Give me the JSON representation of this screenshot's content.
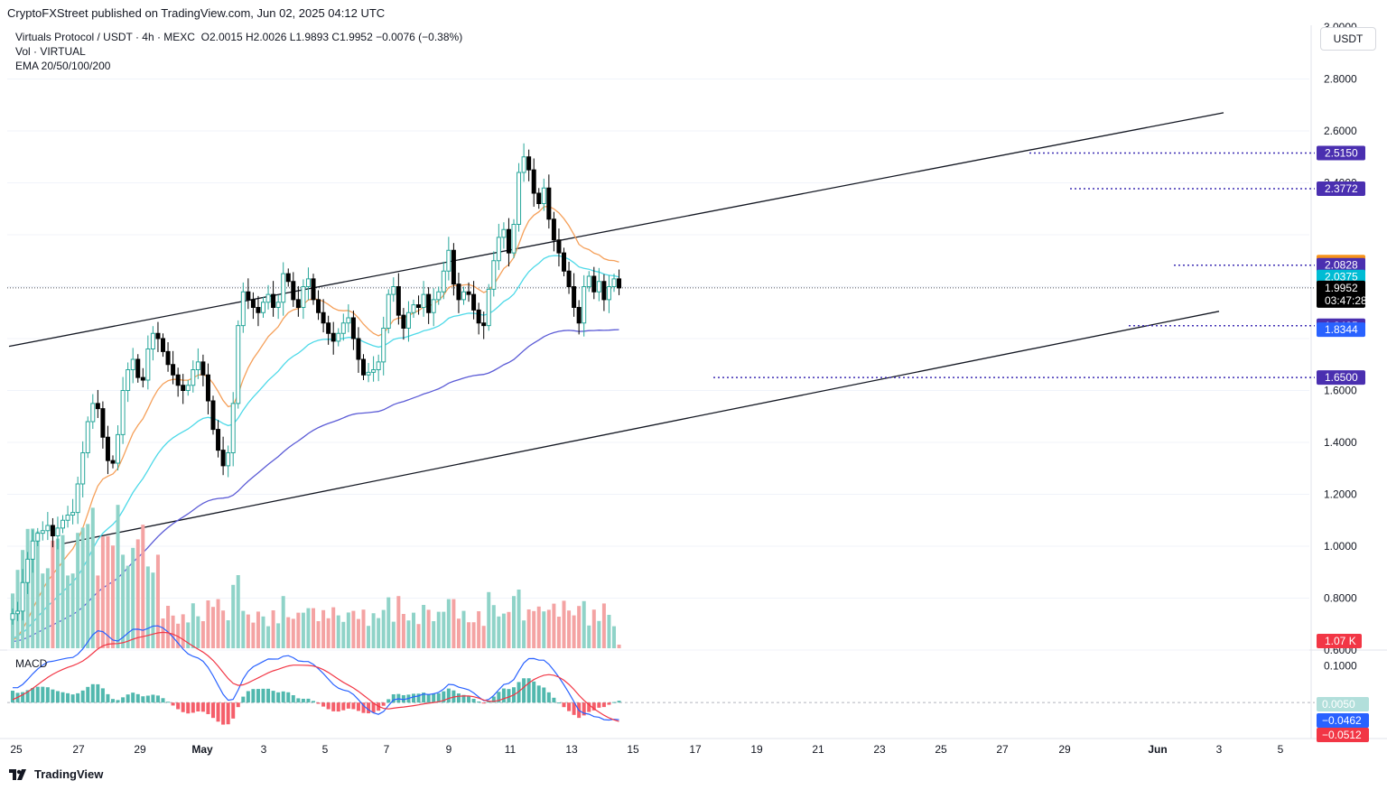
{
  "publisher": "CryptoFXStreet published on TradingView.com, Jun 02, 2025 04:12 UTC",
  "legend": {
    "symbol": "Virtuals Protocol / USDT · 4h · MEXC",
    "ohlc": "O2.0015  H2.0026  L1.9893  C1.9952  −0.0076 (−0.38%)",
    "volume": "Vol · VIRTUAL",
    "ema": "EMA 20/50/100/200"
  },
  "currency_button": "USDT",
  "macd_label": "MACD",
  "footer_brand": "TradingView",
  "colors": {
    "up": "#26a69a",
    "down": "#000000",
    "vol_up": "#8fd3c8",
    "vol_down": "#f4a3a3",
    "ema50": "#f5a05a",
    "ema100": "#4dd9e8",
    "ema200": "#5b5bd6",
    "macd_line": "#2962ff",
    "signal_line": "#f23645",
    "level_line": "#3f2fb4"
  },
  "chart_data": {
    "type": "candlestick",
    "price_axis": {
      "min": 0.6,
      "max": 3.0,
      "ticks": [
        "3.0000",
        "2.8000",
        "2.6000",
        "2.4000",
        "1.6000",
        "1.4000",
        "1.2000",
        "1.0000",
        "0.8000",
        "0.6000"
      ]
    },
    "x_axis": {
      "ticks": [
        "25",
        "27",
        "29",
        "May",
        "3",
        "5",
        "7",
        "9",
        "11",
        "13",
        "15",
        "17",
        "19",
        "21",
        "23",
        "25",
        "27",
        "29",
        "Jun",
        "3",
        "5"
      ]
    },
    "horizontal_levels": [
      2.515,
      2.3772,
      2.0828,
      1.8495,
      1.65
    ],
    "channel": {
      "upper": [
        [
          0.0,
          1.77
        ],
        [
          1.0,
          2.67
        ]
      ],
      "lower": [
        [
          0.0,
          1.0
        ],
        [
          1.0,
          1.91
        ]
      ]
    },
    "close_path": [
      0.74,
      0.75,
      0.86,
      0.95,
      1.02,
      1.05,
      1.06,
      1.08,
      1.04,
      1.07,
      1.1,
      1.12,
      1.13,
      1.24,
      1.36,
      1.48,
      1.55,
      1.53,
      1.42,
      1.33,
      1.32,
      1.43,
      1.6,
      1.68,
      1.72,
      1.65,
      1.64,
      1.76,
      1.82,
      1.8,
      1.75,
      1.7,
      1.66,
      1.62,
      1.6,
      1.62,
      1.68,
      1.71,
      1.66,
      1.56,
      1.45,
      1.37,
      1.31,
      1.36,
      1.55,
      1.85,
      1.98,
      1.95,
      1.92,
      1.9,
      1.94,
      1.97,
      1.92,
      1.94,
      2.05,
      2.02,
      1.95,
      1.92,
      2.0,
      2.03,
      1.95,
      1.9,
      1.86,
      1.82,
      1.79,
      1.82,
      1.86,
      1.88,
      1.8,
      1.72,
      1.66,
      1.67,
      1.68,
      1.71,
      1.84,
      1.97,
      2.0,
      1.89,
      1.84,
      1.9,
      1.93,
      1.92,
      1.97,
      1.9,
      1.95,
      1.98,
      2.06,
      2.14,
      2.01,
      1.95,
      1.98,
      1.97,
      1.91,
      1.86,
      1.85,
      1.99,
      2.1,
      2.19,
      2.22,
      2.13,
      2.24,
      2.44,
      2.5,
      2.45,
      2.36,
      2.32,
      2.38,
      2.26,
      2.18,
      2.13,
      2.06,
      2.0,
      1.92,
      1.86,
      2.0,
      2.04,
      1.98,
      2.02,
      1.95,
      2.0,
      2.03,
      1.9952
    ],
    "ema50_end": 2.0947,
    "ema100_end": 2.0375,
    "ema200_end": 1.8344,
    "last_price": 1.9952,
    "countdown": "03:47:28",
    "volume_last": "1.07 K",
    "macd": {
      "axis_ticks": [
        "0.1000"
      ],
      "histogram_last": 0.005,
      "macd_last": -0.0462,
      "signal_last": -0.0512
    },
    "price_badges": [
      {
        "value": "2.5150",
        "price": 2.515,
        "color": "#4a2fb0"
      },
      {
        "value": "2.3772",
        "price": 2.3772,
        "color": "#4a2fb0"
      },
      {
        "value": "2.0947",
        "price": 2.0947,
        "color": "#f7931a"
      },
      {
        "value": "2.0828",
        "price": 2.0828,
        "color": "#4a2fb0"
      },
      {
        "value": "2.0375",
        "price": 2.0375,
        "color": "#00bcd4"
      },
      {
        "value": "1.9952",
        "price": 1.9952,
        "color": "#000000"
      },
      {
        "value": "1.8495",
        "price": 1.8495,
        "color": "#4a2fb0"
      },
      {
        "value": "1.8344",
        "price": 1.8344,
        "color": "#2962ff"
      },
      {
        "value": "1.6500",
        "price": 1.65,
        "color": "#4a2fb0"
      }
    ],
    "macd_badges": [
      {
        "value": "0.0050",
        "color": "#b2dfdb"
      },
      {
        "value": "−0.0462",
        "color": "#2962ff"
      },
      {
        "value": "−0.0512",
        "color": "#f23645"
      }
    ]
  }
}
